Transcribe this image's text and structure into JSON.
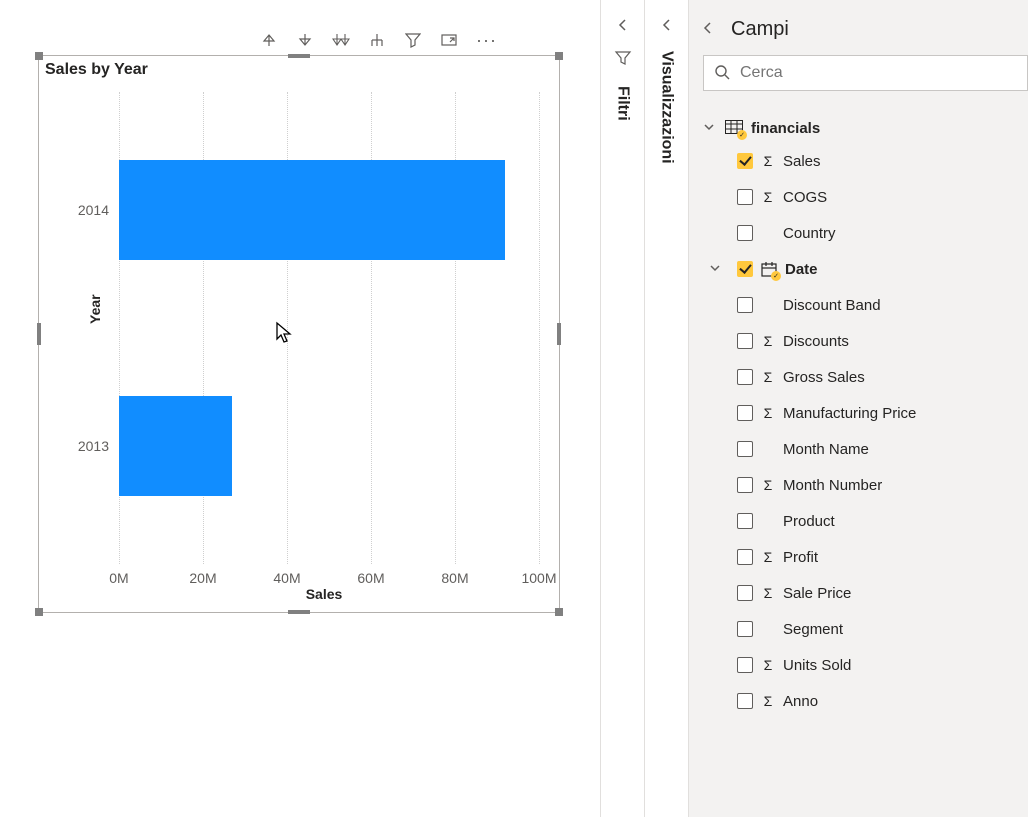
{
  "chart": {
    "title": "Sales by Year",
    "type": "bar-horizontal",
    "y_axis_title": "Year",
    "x_axis_title": "Sales",
    "categories": [
      "2014",
      "2013"
    ],
    "values": [
      92000000,
      27000000
    ],
    "bar_color": "#118dff",
    "background_color": "#ffffff",
    "grid_color": "#cfcfcf",
    "x_ticks": [
      0,
      20000000,
      40000000,
      60000000,
      80000000,
      100000000
    ],
    "x_tick_labels": [
      "0M",
      "20M",
      "40M",
      "60M",
      "80M",
      "100M"
    ],
    "xlim": [
      0,
      100000000
    ],
    "bar_rel_height": 0.21,
    "label_fontsize": 14,
    "title_fontsize": 16,
    "title_color": "#252423",
    "label_color": "#605e5c"
  },
  "panes": {
    "filters": {
      "label": "Filtri"
    },
    "viz": {
      "label": "Visualizzazioni"
    },
    "fields": {
      "title": "Campi",
      "search_placeholder": "Cerca"
    }
  },
  "tables": [
    {
      "name": "financials",
      "expanded": true,
      "has_selection": true,
      "fields": [
        {
          "name": "Sales",
          "checked": true,
          "sigma": true,
          "bold": false,
          "hierarchy": false
        },
        {
          "name": "COGS",
          "checked": false,
          "sigma": true,
          "bold": false,
          "hierarchy": false
        },
        {
          "name": "Country",
          "checked": false,
          "sigma": false,
          "bold": false,
          "hierarchy": false
        },
        {
          "name": "Date",
          "checked": true,
          "sigma": false,
          "bold": true,
          "hierarchy": true,
          "expandable": true
        },
        {
          "name": "Discount Band",
          "checked": false,
          "sigma": false,
          "bold": false,
          "hierarchy": false
        },
        {
          "name": "Discounts",
          "checked": false,
          "sigma": true,
          "bold": false,
          "hierarchy": false
        },
        {
          "name": "Gross Sales",
          "checked": false,
          "sigma": true,
          "bold": false,
          "hierarchy": false
        },
        {
          "name": "Manufacturing Price",
          "checked": false,
          "sigma": true,
          "bold": false,
          "hierarchy": false
        },
        {
          "name": "Month Name",
          "checked": false,
          "sigma": false,
          "bold": false,
          "hierarchy": false
        },
        {
          "name": "Month Number",
          "checked": false,
          "sigma": true,
          "bold": false,
          "hierarchy": false
        },
        {
          "name": "Product",
          "checked": false,
          "sigma": false,
          "bold": false,
          "hierarchy": false
        },
        {
          "name": "Profit",
          "checked": false,
          "sigma": true,
          "bold": false,
          "hierarchy": false
        },
        {
          "name": "Sale Price",
          "checked": false,
          "sigma": true,
          "bold": false,
          "hierarchy": false
        },
        {
          "name": "Segment",
          "checked": false,
          "sigma": false,
          "bold": false,
          "hierarchy": false
        },
        {
          "name": "Units Sold",
          "checked": false,
          "sigma": true,
          "bold": false,
          "hierarchy": false
        },
        {
          "name": "Anno",
          "checked": false,
          "sigma": true,
          "bold": false,
          "hierarchy": false
        }
      ]
    }
  ],
  "colors": {
    "panel_bg": "#f3f2f1",
    "border": "#e1dfdd",
    "checkbox_checked": "#ffc83d",
    "text": "#252423",
    "text_secondary": "#605e5c"
  }
}
